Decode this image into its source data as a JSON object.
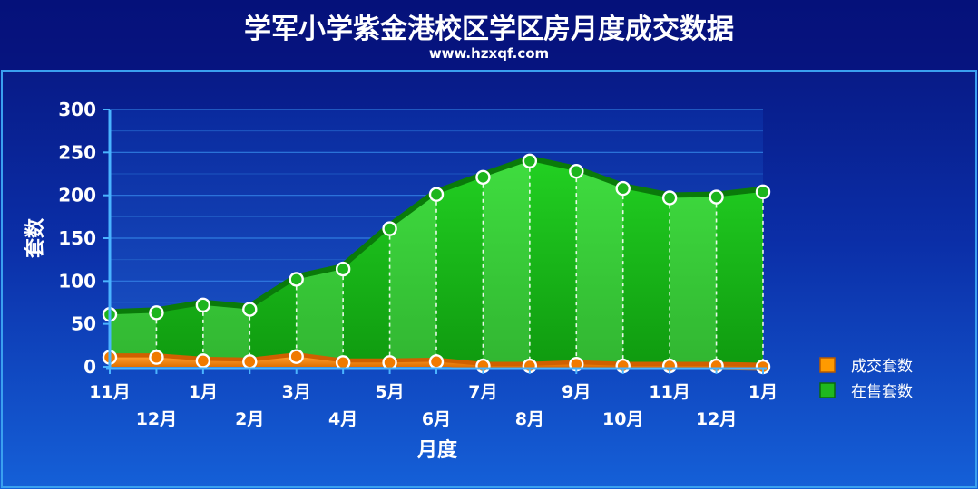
{
  "header": {
    "title": "学军小学紫金港校区学区房月度成交数据",
    "subtitle": "www.hzxqf.com"
  },
  "colors": {
    "background_top": "#06127a",
    "background_bottom": "#1560d8",
    "frame": "#3aa0f0",
    "sale_fill": "#1fb81f",
    "sale_line": "#0a7a0a",
    "deal_fill": "#ff8c00",
    "deal_line": "#d06000",
    "point_border": "#ffffff"
  },
  "chart_data": {
    "type": "area",
    "title": "学军小学紫金港校区学区房月度成交数据",
    "xlabel": "月度",
    "ylabel": "套数",
    "categories": [
      "11月",
      "12月",
      "1月",
      "2月",
      "3月",
      "4月",
      "5月",
      "6月",
      "7月",
      "8月",
      "9月",
      "10月",
      "11月",
      "12月",
      "1月"
    ],
    "ylim": [
      0,
      300
    ],
    "yticks": [
      0,
      50,
      100,
      150,
      200,
      250,
      300
    ],
    "grid": true,
    "legend_position": "right",
    "series": [
      {
        "name": "成交套数",
        "values": [
          11,
          11,
          7,
          6,
          12,
          5,
          5,
          6,
          1,
          1,
          3,
          1,
          1,
          1,
          0
        ],
        "color": "#ff8c00"
      },
      {
        "name": "在售套数",
        "values": [
          61,
          63,
          72,
          67,
          102,
          114,
          161,
          201,
          221,
          240,
          228,
          208,
          197,
          198,
          204
        ],
        "color": "#1fb81f"
      }
    ]
  }
}
